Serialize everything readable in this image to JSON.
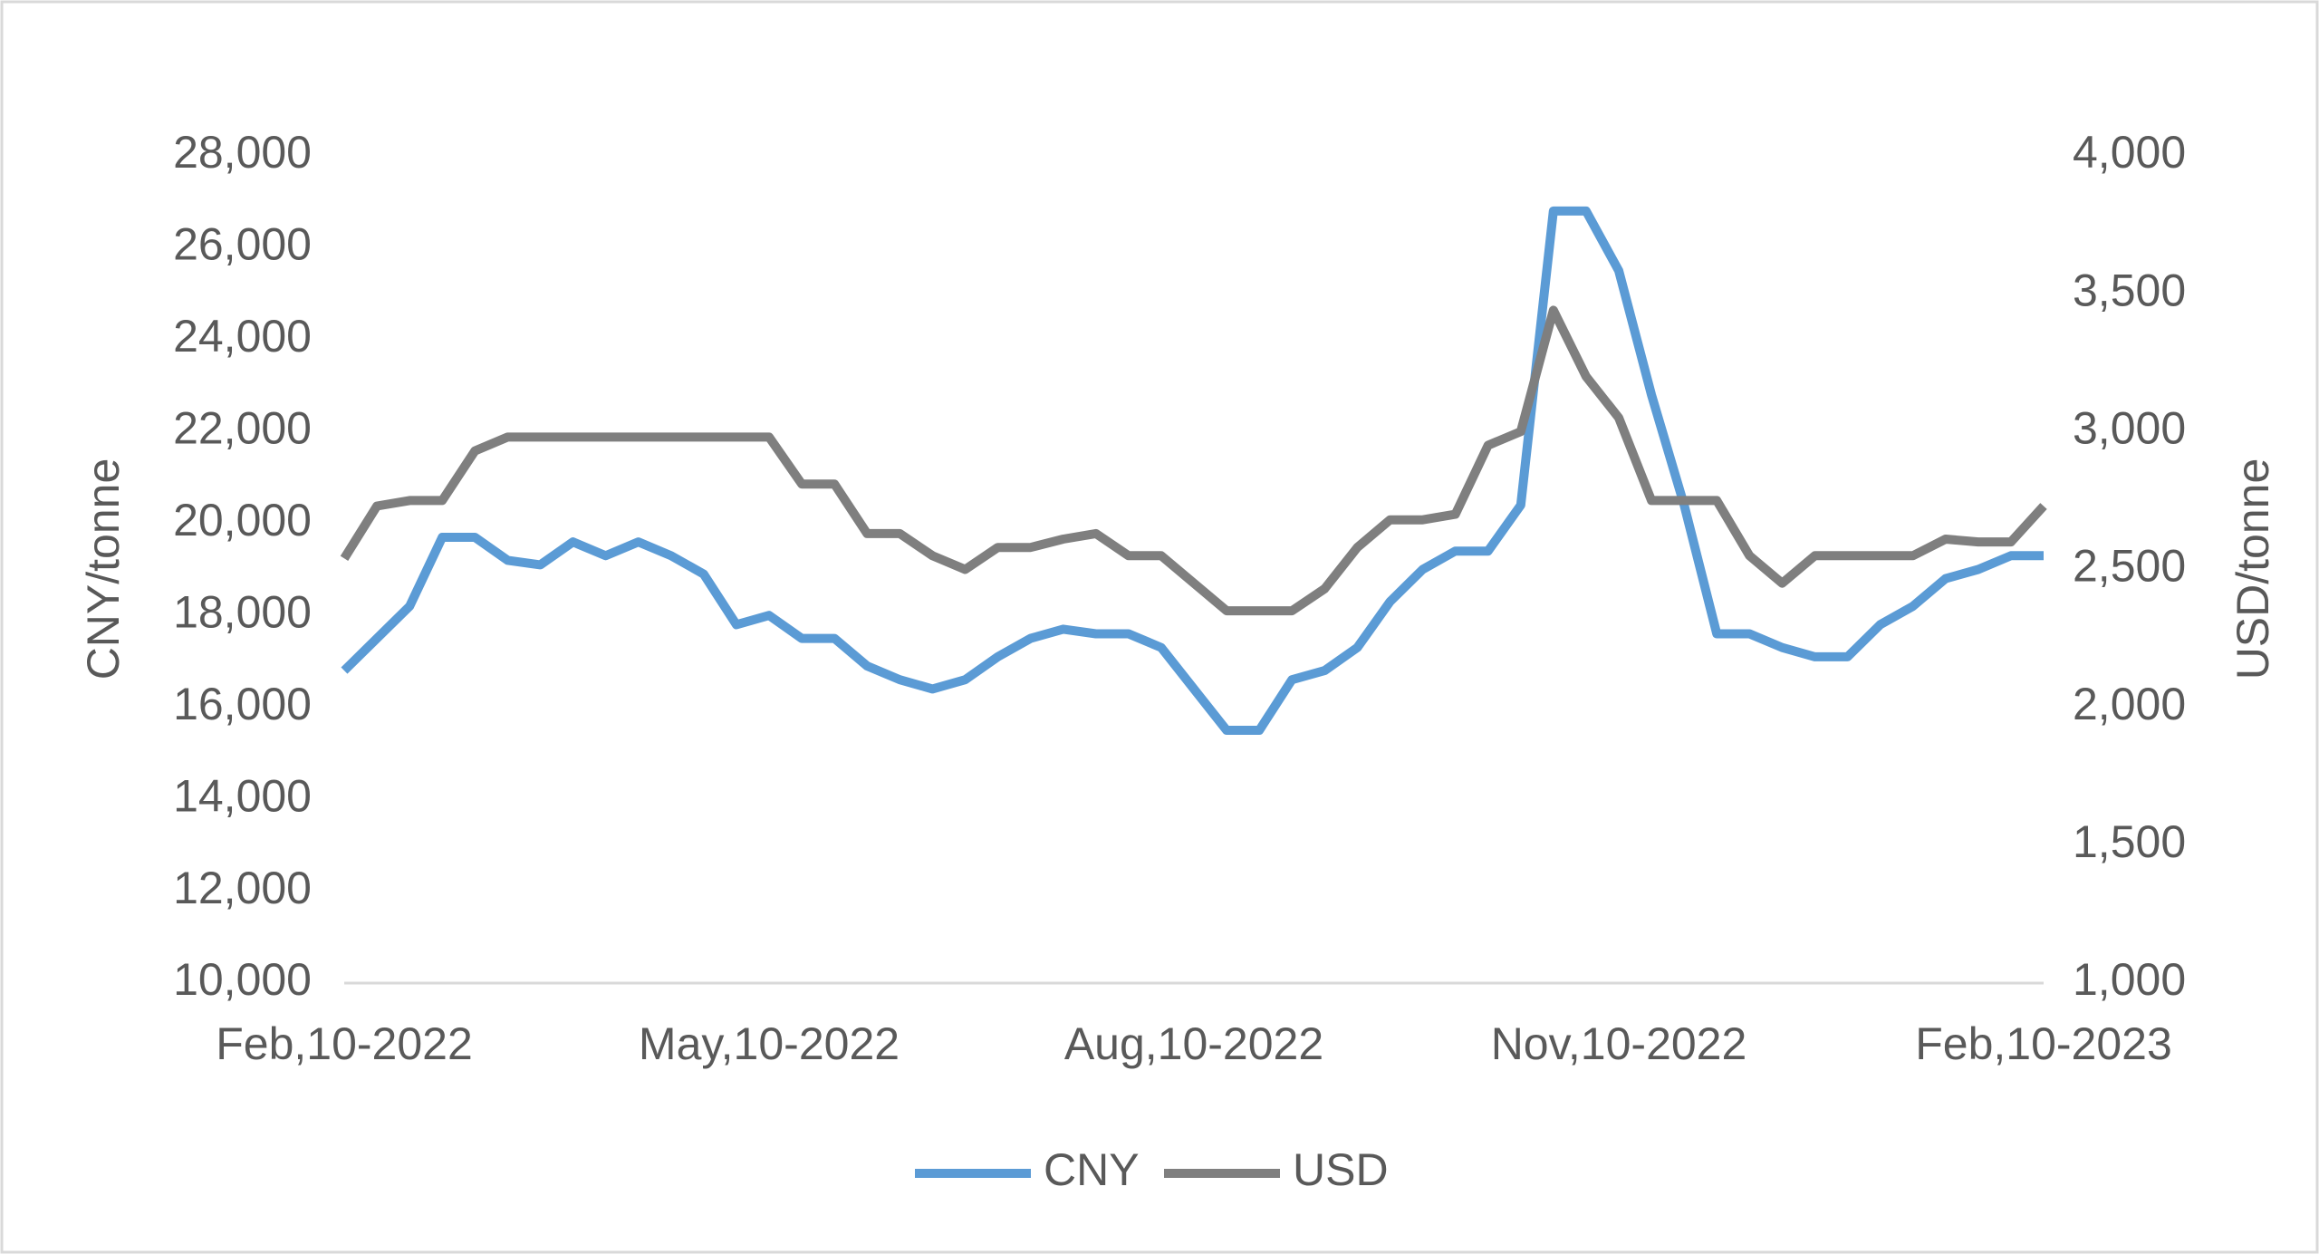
{
  "chart_data": {
    "type": "line",
    "categories": [
      "Feb,10-2022",
      null,
      null,
      null,
      null,
      null,
      null,
      null,
      null,
      null,
      null,
      null,
      null,
      "May,10-2022",
      null,
      null,
      null,
      null,
      null,
      null,
      null,
      null,
      null,
      null,
      null,
      null,
      "Aug,10-2022",
      null,
      null,
      null,
      null,
      null,
      null,
      null,
      null,
      null,
      null,
      null,
      null,
      "Nov,10-2022",
      null,
      null,
      null,
      null,
      null,
      null,
      null,
      null,
      null,
      null,
      null,
      null,
      "Feb,10-2023"
    ],
    "series": [
      {
        "name": "CNY",
        "color": "#5b9bd5",
        "values": [
          16800,
          17500,
          18200,
          19700,
          19700,
          19200,
          19100,
          19600,
          19300,
          19600,
          19300,
          18900,
          17800,
          18000,
          17500,
          17500,
          16900,
          16600,
          16400,
          16600,
          17100,
          17500,
          17700,
          17600,
          17600,
          17300,
          16400,
          15500,
          15500,
          16600,
          16800,
          17300,
          18300,
          19000,
          19400,
          19400,
          20400,
          26800,
          26800,
          25500,
          22800,
          20400,
          17600,
          17600,
          17300,
          17100,
          17100,
          17800,
          18200,
          18800,
          19000,
          19300,
          19300
        ]
      },
      {
        "name": "USD",
        "color": "#7f7f7f",
        "axis": "y2",
        "values": [
          2540,
          2730,
          2750,
          2750,
          2930,
          2980,
          2980,
          2980,
          2980,
          2980,
          2980,
          2980,
          2980,
          2980,
          2810,
          2810,
          2630,
          2630,
          2550,
          2500,
          2580,
          2580,
          2610,
          2630,
          2550,
          2550,
          2450,
          2350,
          2350,
          2350,
          2430,
          2580,
          2680,
          2680,
          2700,
          2950,
          3000,
          3440,
          3200,
          3050,
          2750,
          2750,
          2750,
          2550,
          2450,
          2550,
          2550,
          2550,
          2550,
          2610,
          2600,
          2600,
          2730
        ]
      }
    ],
    "ylabel": "CNY/tonne",
    "y2label": "USD/tonne",
    "ylim": [
      10000,
      28000
    ],
    "yticks": [
      {
        "value": 10000,
        "label": "10,000"
      },
      {
        "value": 12000,
        "label": "12,000"
      },
      {
        "value": 14000,
        "label": "14,000"
      },
      {
        "value": 16000,
        "label": "16,000"
      },
      {
        "value": 18000,
        "label": "18,000"
      },
      {
        "value": 20000,
        "label": "20,000"
      },
      {
        "value": 22000,
        "label": "22,000"
      },
      {
        "value": 24000,
        "label": "24,000"
      },
      {
        "value": 26000,
        "label": "26,000"
      },
      {
        "value": 28000,
        "label": "28,000"
      }
    ],
    "y2lim": [
      1000,
      4000
    ],
    "y2ticks": [
      {
        "value": 1000,
        "label": "1,000"
      },
      {
        "value": 1500,
        "label": "1,500"
      },
      {
        "value": 2000,
        "label": "2,000"
      },
      {
        "value": 2500,
        "label": "2,500"
      },
      {
        "value": 3000,
        "label": "3,000"
      },
      {
        "value": 3500,
        "label": "3,500"
      },
      {
        "value": 4000,
        "label": "4,000"
      }
    ],
    "grid": false,
    "legend": "bottom"
  }
}
